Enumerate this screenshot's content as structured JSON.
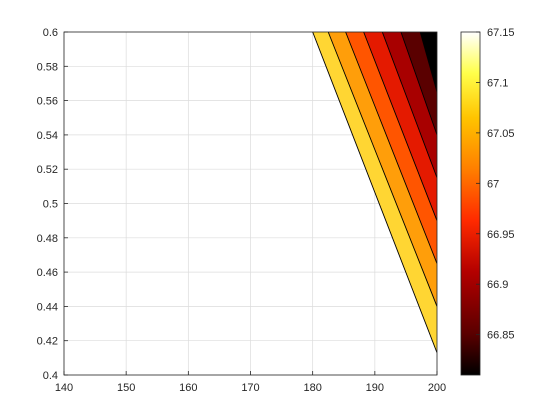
{
  "chart_data": {
    "type": "contour",
    "title": "",
    "xlabel": "",
    "ylabel": "",
    "xlim": [
      140,
      200
    ],
    "ylim": [
      0.4,
      0.6
    ],
    "x_ticks": [
      "140",
      "150",
      "160",
      "170",
      "180",
      "190",
      "200"
    ],
    "y_ticks": [
      "0.4",
      "0.42",
      "0.44",
      "0.46",
      "0.48",
      "0.5",
      "0.52",
      "0.54",
      "0.56",
      "0.58",
      "0.6"
    ],
    "grid": true,
    "colormap": "hot",
    "colorbar": {
      "limits": [
        66.81,
        67.15
      ],
      "ticks": [
        "66.85",
        "66.9",
        "66.95",
        "67",
        "67.05",
        "67.1",
        "67.15"
      ]
    },
    "contour_lines": [
      {
        "level": 67.1,
        "points": [
          [
            180.0,
            0.6
          ],
          [
            200.0,
            0.413
          ]
        ]
      },
      {
        "level": 67.05,
        "points": [
          [
            182.5,
            0.6
          ],
          [
            200.0,
            0.44
          ]
        ]
      },
      {
        "level": 67.0,
        "points": [
          [
            185.3,
            0.6
          ],
          [
            200.0,
            0.465
          ]
        ]
      },
      {
        "level": 66.95,
        "points": [
          [
            188.2,
            0.6
          ],
          [
            200.0,
            0.49
          ]
        ]
      },
      {
        "level": 66.9,
        "points": [
          [
            191.2,
            0.6
          ],
          [
            200.0,
            0.515
          ]
        ]
      },
      {
        "level": 66.85,
        "points": [
          [
            194.2,
            0.6
          ],
          [
            200.0,
            0.54
          ]
        ]
      },
      {
        "level": 66.82,
        "points": [
          [
            197.3,
            0.6
          ],
          [
            200.0,
            0.565
          ]
        ]
      }
    ],
    "filled_bands": [
      {
        "color": "#ffff7e"
      },
      {
        "color": "#ffd633"
      },
      {
        "color": "#ff9e0a"
      },
      {
        "color": "#ff5500"
      },
      {
        "color": "#e41a00"
      },
      {
        "color": "#a80000"
      },
      {
        "color": "#5a0000"
      },
      {
        "color": "#000000"
      }
    ]
  }
}
